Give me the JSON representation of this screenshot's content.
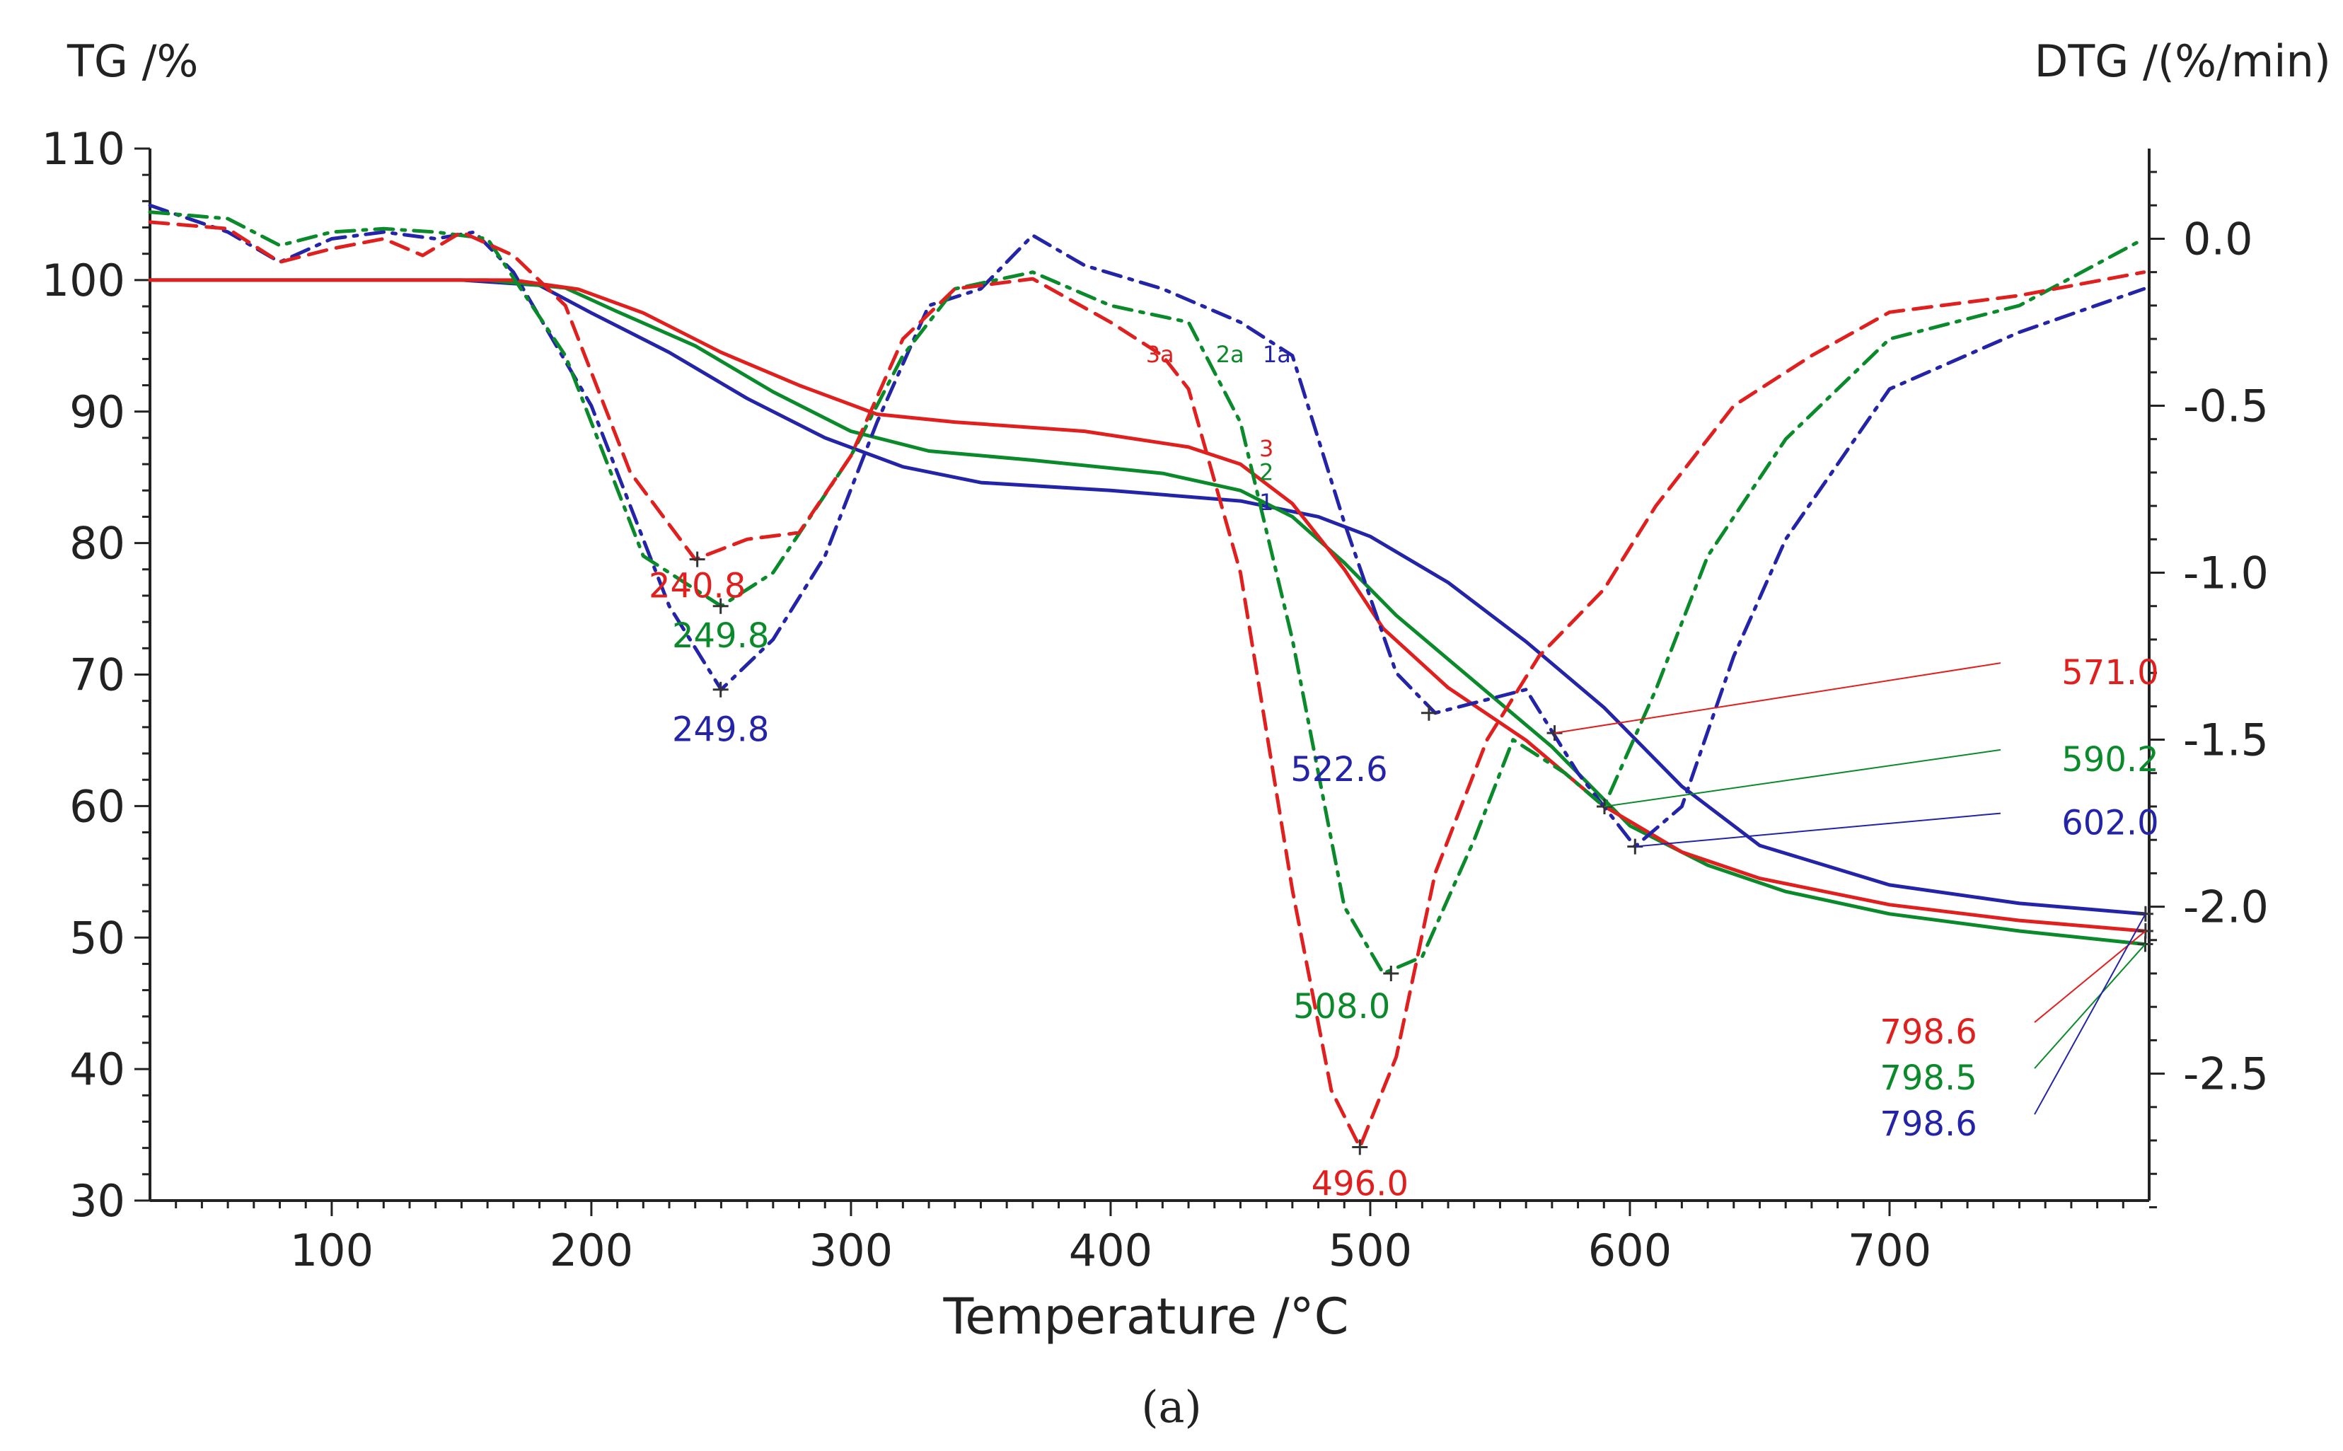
{
  "chart_data": {
    "type": "line",
    "title": "",
    "caption": "(a)",
    "xlabel": "Temperature /°C",
    "ylabel_left": "TG /%",
    "ylabel_right": "DTG /(%/min)",
    "xlim": [
      30,
      800
    ],
    "ylim_left": [
      30,
      110
    ],
    "ylim_right": [
      -2.88,
      0.27
    ],
    "x_ticks": [
      "100",
      "200",
      "300",
      "400",
      "500",
      "600",
      "700"
    ],
    "y_left_ticks": [
      "30",
      "40",
      "50",
      "60",
      "70",
      "80",
      "90",
      "100",
      "110"
    ],
    "y_right_ticks": [
      "0.0",
      "-0.5",
      "-1.0",
      "-1.5",
      "-2.0",
      "-2.5"
    ],
    "colors": {
      "1": "#2424a8",
      "2": "#0a8a2a",
      "3": "#e0201e"
    },
    "series": [
      {
        "name": "1",
        "axis": "TG",
        "style": "solid",
        "color_key": "1",
        "points": [
          [
            30,
            100
          ],
          [
            150,
            100
          ],
          [
            180,
            99.6
          ],
          [
            200,
            97.5
          ],
          [
            230,
            94.5
          ],
          [
            260,
            91
          ],
          [
            290,
            88
          ],
          [
            320,
            85.8
          ],
          [
            350,
            84.6
          ],
          [
            400,
            84
          ],
          [
            450,
            83.2
          ],
          [
            480,
            82
          ],
          [
            500,
            80.5
          ],
          [
            530,
            77
          ],
          [
            560,
            72.5
          ],
          [
            590,
            67.5
          ],
          [
            620,
            61.5
          ],
          [
            650,
            57
          ],
          [
            700,
            54
          ],
          [
            750,
            52.6
          ],
          [
            798,
            51.8
          ]
        ]
      },
      {
        "name": "2",
        "axis": "TG",
        "style": "solid",
        "color_key": "2",
        "points": [
          [
            30,
            100
          ],
          [
            160,
            100
          ],
          [
            190,
            99.4
          ],
          [
            210,
            97.6
          ],
          [
            240,
            95
          ],
          [
            270,
            91.5
          ],
          [
            300,
            88.5
          ],
          [
            330,
            87
          ],
          [
            370,
            86.3
          ],
          [
            420,
            85.3
          ],
          [
            450,
            84
          ],
          [
            470,
            82
          ],
          [
            490,
            78.5
          ],
          [
            510,
            74.5
          ],
          [
            540,
            69.5
          ],
          [
            570,
            64.5
          ],
          [
            600,
            58.5
          ],
          [
            630,
            55.5
          ],
          [
            660,
            53.5
          ],
          [
            700,
            51.8
          ],
          [
            750,
            50.5
          ],
          [
            798,
            49.5
          ]
        ]
      },
      {
        "name": "3",
        "axis": "TG",
        "style": "solid",
        "color_key": "3",
        "points": [
          [
            30,
            100
          ],
          [
            170,
            100
          ],
          [
            195,
            99.3
          ],
          [
            220,
            97.5
          ],
          [
            250,
            94.5
          ],
          [
            280,
            92
          ],
          [
            310,
            89.8
          ],
          [
            340,
            89.2
          ],
          [
            390,
            88.5
          ],
          [
            430,
            87.3
          ],
          [
            450,
            86
          ],
          [
            470,
            83
          ],
          [
            490,
            78
          ],
          [
            505,
            73.5
          ],
          [
            530,
            69
          ],
          [
            560,
            65
          ],
          [
            590,
            60
          ],
          [
            620,
            56.5
          ],
          [
            650,
            54.5
          ],
          [
            700,
            52.5
          ],
          [
            750,
            51.3
          ],
          [
            798,
            50.5
          ]
        ]
      },
      {
        "name": "1a",
        "axis": "DTG",
        "style": "dashdot",
        "color_key": "1",
        "points": [
          [
            30,
            0.1
          ],
          [
            60,
            0.02
          ],
          [
            80,
            -0.07
          ],
          [
            100,
            0
          ],
          [
            120,
            0.02
          ],
          [
            140,
            0
          ],
          [
            155,
            0.02
          ],
          [
            170,
            -0.1
          ],
          [
            200,
            -0.5
          ],
          [
            230,
            -1.1
          ],
          [
            250,
            -1.35
          ],
          [
            270,
            -1.2
          ],
          [
            290,
            -0.95
          ],
          [
            310,
            -0.55
          ],
          [
            330,
            -0.2
          ],
          [
            350,
            -0.15
          ],
          [
            370,
            0.01
          ],
          [
            390,
            -0.08
          ],
          [
            420,
            -0.15
          ],
          [
            450,
            -0.25
          ],
          [
            470,
            -0.35
          ],
          [
            490,
            -0.85
          ],
          [
            510,
            -1.3
          ],
          [
            525,
            -1.42
          ],
          [
            545,
            -1.38
          ],
          [
            560,
            -1.35
          ],
          [
            580,
            -1.6
          ],
          [
            602,
            -1.82
          ],
          [
            620,
            -1.7
          ],
          [
            640,
            -1.25
          ],
          [
            660,
            -0.9
          ],
          [
            700,
            -0.45
          ],
          [
            750,
            -0.28
          ],
          [
            798,
            -0.15
          ]
        ]
      },
      {
        "name": "2a",
        "axis": "DTG",
        "style": "dashdot",
        "color_key": "2",
        "points": [
          [
            30,
            0.08
          ],
          [
            60,
            0.06
          ],
          [
            80,
            -0.02
          ],
          [
            100,
            0.02
          ],
          [
            120,
            0.03
          ],
          [
            140,
            0.02
          ],
          [
            160,
            0
          ],
          [
            190,
            -0.35
          ],
          [
            220,
            -0.95
          ],
          [
            250,
            -1.1
          ],
          [
            270,
            -1.0
          ],
          [
            300,
            -0.65
          ],
          [
            320,
            -0.35
          ],
          [
            340,
            -0.15
          ],
          [
            370,
            -0.1
          ],
          [
            400,
            -0.2
          ],
          [
            430,
            -0.25
          ],
          [
            450,
            -0.55
          ],
          [
            470,
            -1.2
          ],
          [
            490,
            -2.0
          ],
          [
            505,
            -2.2
          ],
          [
            520,
            -2.15
          ],
          [
            540,
            -1.8
          ],
          [
            555,
            -1.5
          ],
          [
            575,
            -1.6
          ],
          [
            590,
            -1.7
          ],
          [
            610,
            -1.35
          ],
          [
            630,
            -0.95
          ],
          [
            660,
            -0.6
          ],
          [
            700,
            -0.3
          ],
          [
            750,
            -0.2
          ],
          [
            798,
            0.0
          ]
        ]
      },
      {
        "name": "3a",
        "axis": "DTG",
        "style": "dashed",
        "color_key": "3",
        "points": [
          [
            30,
            0.05
          ],
          [
            60,
            0.03
          ],
          [
            80,
            -0.07
          ],
          [
            100,
            -0.03
          ],
          [
            120,
            0
          ],
          [
            135,
            -0.05
          ],
          [
            150,
            0.02
          ],
          [
            170,
            -0.05
          ],
          [
            190,
            -0.2
          ],
          [
            215,
            -0.7
          ],
          [
            240,
            -0.96
          ],
          [
            260,
            -0.9
          ],
          [
            280,
            -0.88
          ],
          [
            300,
            -0.65
          ],
          [
            320,
            -0.3
          ],
          [
            340,
            -0.15
          ],
          [
            370,
            -0.12
          ],
          [
            400,
            -0.25
          ],
          [
            420,
            -0.35
          ],
          [
            430,
            -0.45
          ],
          [
            450,
            -1.0
          ],
          [
            470,
            -1.95
          ],
          [
            485,
            -2.55
          ],
          [
            496,
            -2.72
          ],
          [
            510,
            -2.45
          ],
          [
            525,
            -1.9
          ],
          [
            545,
            -1.5
          ],
          [
            565,
            -1.25
          ],
          [
            590,
            -1.05
          ],
          [
            610,
            -0.8
          ],
          [
            640,
            -0.5
          ],
          [
            670,
            -0.35
          ],
          [
            700,
            -0.22
          ],
          [
            750,
            -0.17
          ],
          [
            798,
            -0.1
          ]
        ]
      }
    ],
    "curve_labels": [
      {
        "text": "1",
        "x": 460,
        "y": 82.5,
        "axis": "TG",
        "color_key": "1"
      },
      {
        "text": "2",
        "x": 460,
        "y": 84.8,
        "axis": "TG",
        "color_key": "2"
      },
      {
        "text": "3",
        "x": 460,
        "y": 86.6,
        "axis": "TG",
        "color_key": "3"
      },
      {
        "text": "1a",
        "x": 464,
        "y": -0.37,
        "axis": "DTG",
        "color_key": "1"
      },
      {
        "text": "2a",
        "x": 446,
        "y": -0.37,
        "axis": "DTG",
        "color_key": "2"
      },
      {
        "text": "3a",
        "x": 419,
        "y": -0.37,
        "axis": "DTG",
        "color_key": "3"
      }
    ],
    "annotations": [
      {
        "text": "240.8",
        "color_key": "3",
        "axis": "DTG",
        "x": 240.8,
        "y": -0.96,
        "label_x": 240.8,
        "label_y": -1.04,
        "leader": false
      },
      {
        "text": "249.8",
        "color_key": "2",
        "axis": "DTG",
        "x": 249.8,
        "y": -1.1,
        "label_x": 249.8,
        "label_y": -1.19,
        "leader": false
      },
      {
        "text": "249.8",
        "color_key": "1",
        "axis": "DTG",
        "x": 249.8,
        "y": -1.35,
        "label_x": 249.8,
        "label_y": -1.47,
        "leader": false
      },
      {
        "text": "522.6",
        "color_key": "1",
        "axis": "DTG",
        "x": 522.6,
        "y": -1.42,
        "label_x": 488,
        "label_y": -1.59,
        "leader": false
      },
      {
        "text": "508.0",
        "color_key": "2",
        "axis": "DTG",
        "x": 508,
        "y": -2.2,
        "label_x": 489,
        "label_y": -2.3,
        "leader": false
      },
      {
        "text": "496.0",
        "color_key": "3",
        "axis": "DTG",
        "x": 496,
        "y": -2.72,
        "label_x": 496,
        "label_y": -2.83,
        "leader": false
      },
      {
        "text": "571.0",
        "color_key": "3",
        "axis": "DTG",
        "x": 571,
        "y": -1.48,
        "label_x": 785,
        "label_y": -1.3,
        "leader": true
      },
      {
        "text": "590.2",
        "color_key": "2",
        "axis": "DTG",
        "x": 590.2,
        "y": -1.7,
        "label_x": 785,
        "label_y": -1.56,
        "leader": true
      },
      {
        "text": "602.0",
        "color_key": "1",
        "axis": "DTG",
        "x": 602,
        "y": -1.82,
        "label_x": 785,
        "label_y": -1.75,
        "leader": true
      },
      {
        "text": "798.6",
        "color_key": "3",
        "axis": "TG",
        "x": 798.6,
        "y": 50.5,
        "label_x": 715,
        "label_y": 42.8,
        "leader": true
      },
      {
        "text": "798.5",
        "color_key": "2",
        "axis": "TG",
        "x": 798.5,
        "y": 49.5,
        "label_x": 715,
        "label_y": 39.3,
        "leader": true
      },
      {
        "text": "798.6",
        "color_key": "1",
        "axis": "TG",
        "x": 798.6,
        "y": 51.8,
        "label_x": 715,
        "label_y": 35.8,
        "leader": true
      }
    ]
  }
}
